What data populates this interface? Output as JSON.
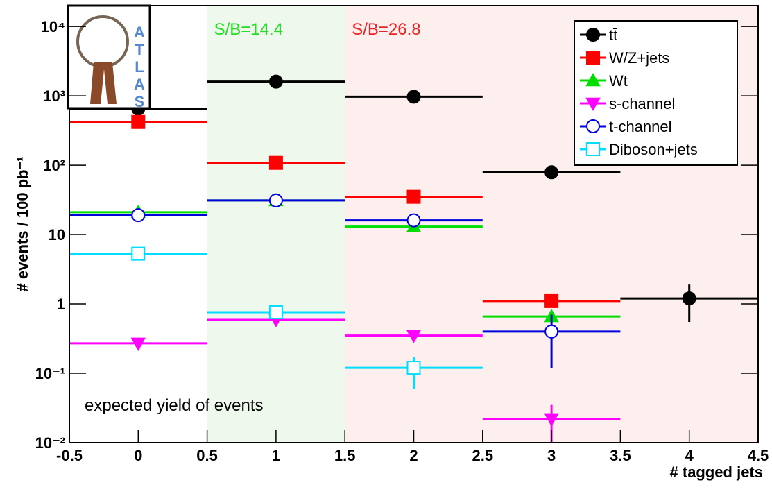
{
  "chart_data": {
    "type": "scatter",
    "ylabel": "# events / 100 pb⁻¹",
    "xlabel": "# tagged jets",
    "annotation": "expected yield of events",
    "logo_text": "ATLAS",
    "log_y": true,
    "legend": "top-right",
    "xlim": [
      -0.5,
      4.5
    ],
    "ylim": [
      0.01,
      20000
    ],
    "xticks": [
      -0.5,
      0,
      0.5,
      1,
      1.5,
      2,
      2.5,
      3,
      3.5,
      4,
      4.5
    ],
    "yticks": [
      {
        "value": 0.01,
        "label": "10⁻²"
      },
      {
        "value": 0.1,
        "label": "10⁻¹"
      },
      1,
      10,
      {
        "value": 100,
        "label": "10²"
      },
      {
        "value": 1000,
        "label": "10³"
      },
      {
        "value": 10000,
        "label": "10⁴"
      }
    ],
    "xerr": 0.5,
    "regions": [
      {
        "xlim": [
          0.5,
          1.5
        ],
        "color": "#eef8ec",
        "label": "S/B=14.4",
        "label_color": "#22dd22"
      },
      {
        "xlim": [
          1.5,
          4.5
        ],
        "color": "#fcefee",
        "label": "S/B=26.8",
        "label_color": "#ee2222"
      }
    ],
    "x": [
      0,
      1,
      2,
      3,
      4
    ],
    "series": [
      {
        "name": "tt̄",
        "color": "#000000",
        "marker": "circle",
        "filled": true,
        "values": [
          650,
          1600,
          970,
          79,
          1.2
        ],
        "errors": [
          null,
          null,
          null,
          null,
          [
            0.55,
            1.9
          ]
        ]
      },
      {
        "name": "W/Z+jets",
        "color": "#ff0000",
        "marker": "square",
        "filled": true,
        "values": [
          420,
          108,
          35,
          1.1,
          null
        ],
        "errors": [
          null,
          null,
          null,
          null,
          null
        ]
      },
      {
        "name": "Wt",
        "color": "#00dd00",
        "marker": "triangle-up",
        "filled": true,
        "values": [
          21,
          31,
          13,
          0.66,
          null
        ],
        "errors": [
          null,
          null,
          null,
          null,
          null
        ]
      },
      {
        "name": "s-channel",
        "color": "#ff00ff",
        "marker": "triangle-down",
        "filled": true,
        "values": [
          0.27,
          0.59,
          0.35,
          0.022,
          null
        ],
        "errors": [
          null,
          null,
          null,
          [
            0.01,
            0.035
          ],
          null
        ]
      },
      {
        "name": "t-channel",
        "color": "#0000dd",
        "marker": "circle",
        "filled": false,
        "values": [
          19,
          31,
          16,
          0.4,
          null
        ],
        "errors": [
          null,
          null,
          null,
          [
            0.12,
            0.7
          ],
          null
        ]
      },
      {
        "name": "Diboson+jets",
        "color": "#00ddff",
        "marker": "square",
        "filled": false,
        "values": [
          5.3,
          0.76,
          0.12,
          null,
          null
        ],
        "errors": [
          null,
          null,
          [
            0.06,
            0.17
          ],
          null,
          null
        ]
      }
    ]
  }
}
